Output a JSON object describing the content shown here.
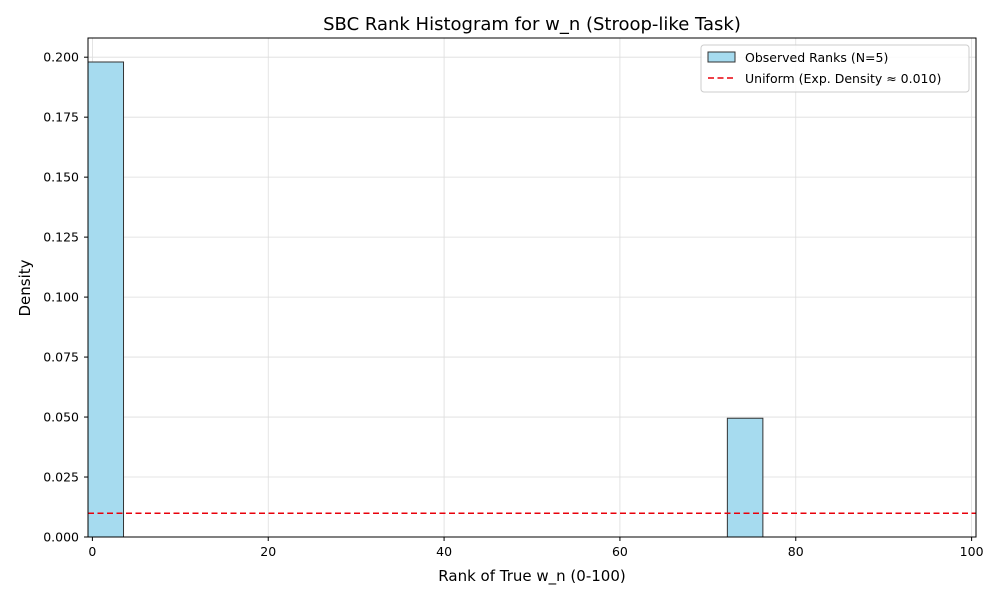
{
  "chart_data": {
    "type": "bar",
    "title": "SBC Rank Histogram for w_n (Stroop-like Task)",
    "xlabel": "Rank of True w_n (0-100)",
    "ylabel": "Density",
    "xlim": [
      -0.5,
      100.5
    ],
    "ylim": [
      0,
      0.208
    ],
    "xticks": [
      0,
      20,
      40,
      60,
      80,
      100
    ],
    "yticks": [
      0.0,
      0.025,
      0.05,
      0.075,
      0.1,
      0.125,
      0.15,
      0.175,
      0.2
    ],
    "ytick_labels": [
      "0.000",
      "0.025",
      "0.050",
      "0.075",
      "0.100",
      "0.125",
      "0.150",
      "0.175",
      "0.200"
    ],
    "grid": true,
    "legend_position": "top-right",
    "bins": [
      {
        "start": -0.5,
        "end": 3.54,
        "density": 0.198
      },
      {
        "start": 72.22,
        "end": 76.26,
        "density": 0.0495
      }
    ],
    "uniform_line": {
      "y": 0.0099
    },
    "legend": [
      {
        "label": "Observed Ranks (N=5)",
        "kind": "patch"
      },
      {
        "label": "Uniform (Exp. Density ≈ 0.010)",
        "kind": "dashed-line"
      }
    ],
    "colors": {
      "bar_fill": "#a6dbef",
      "bar_edge": "#333333",
      "uniform_line": "#e8000b",
      "grid": "#dddddd"
    }
  }
}
